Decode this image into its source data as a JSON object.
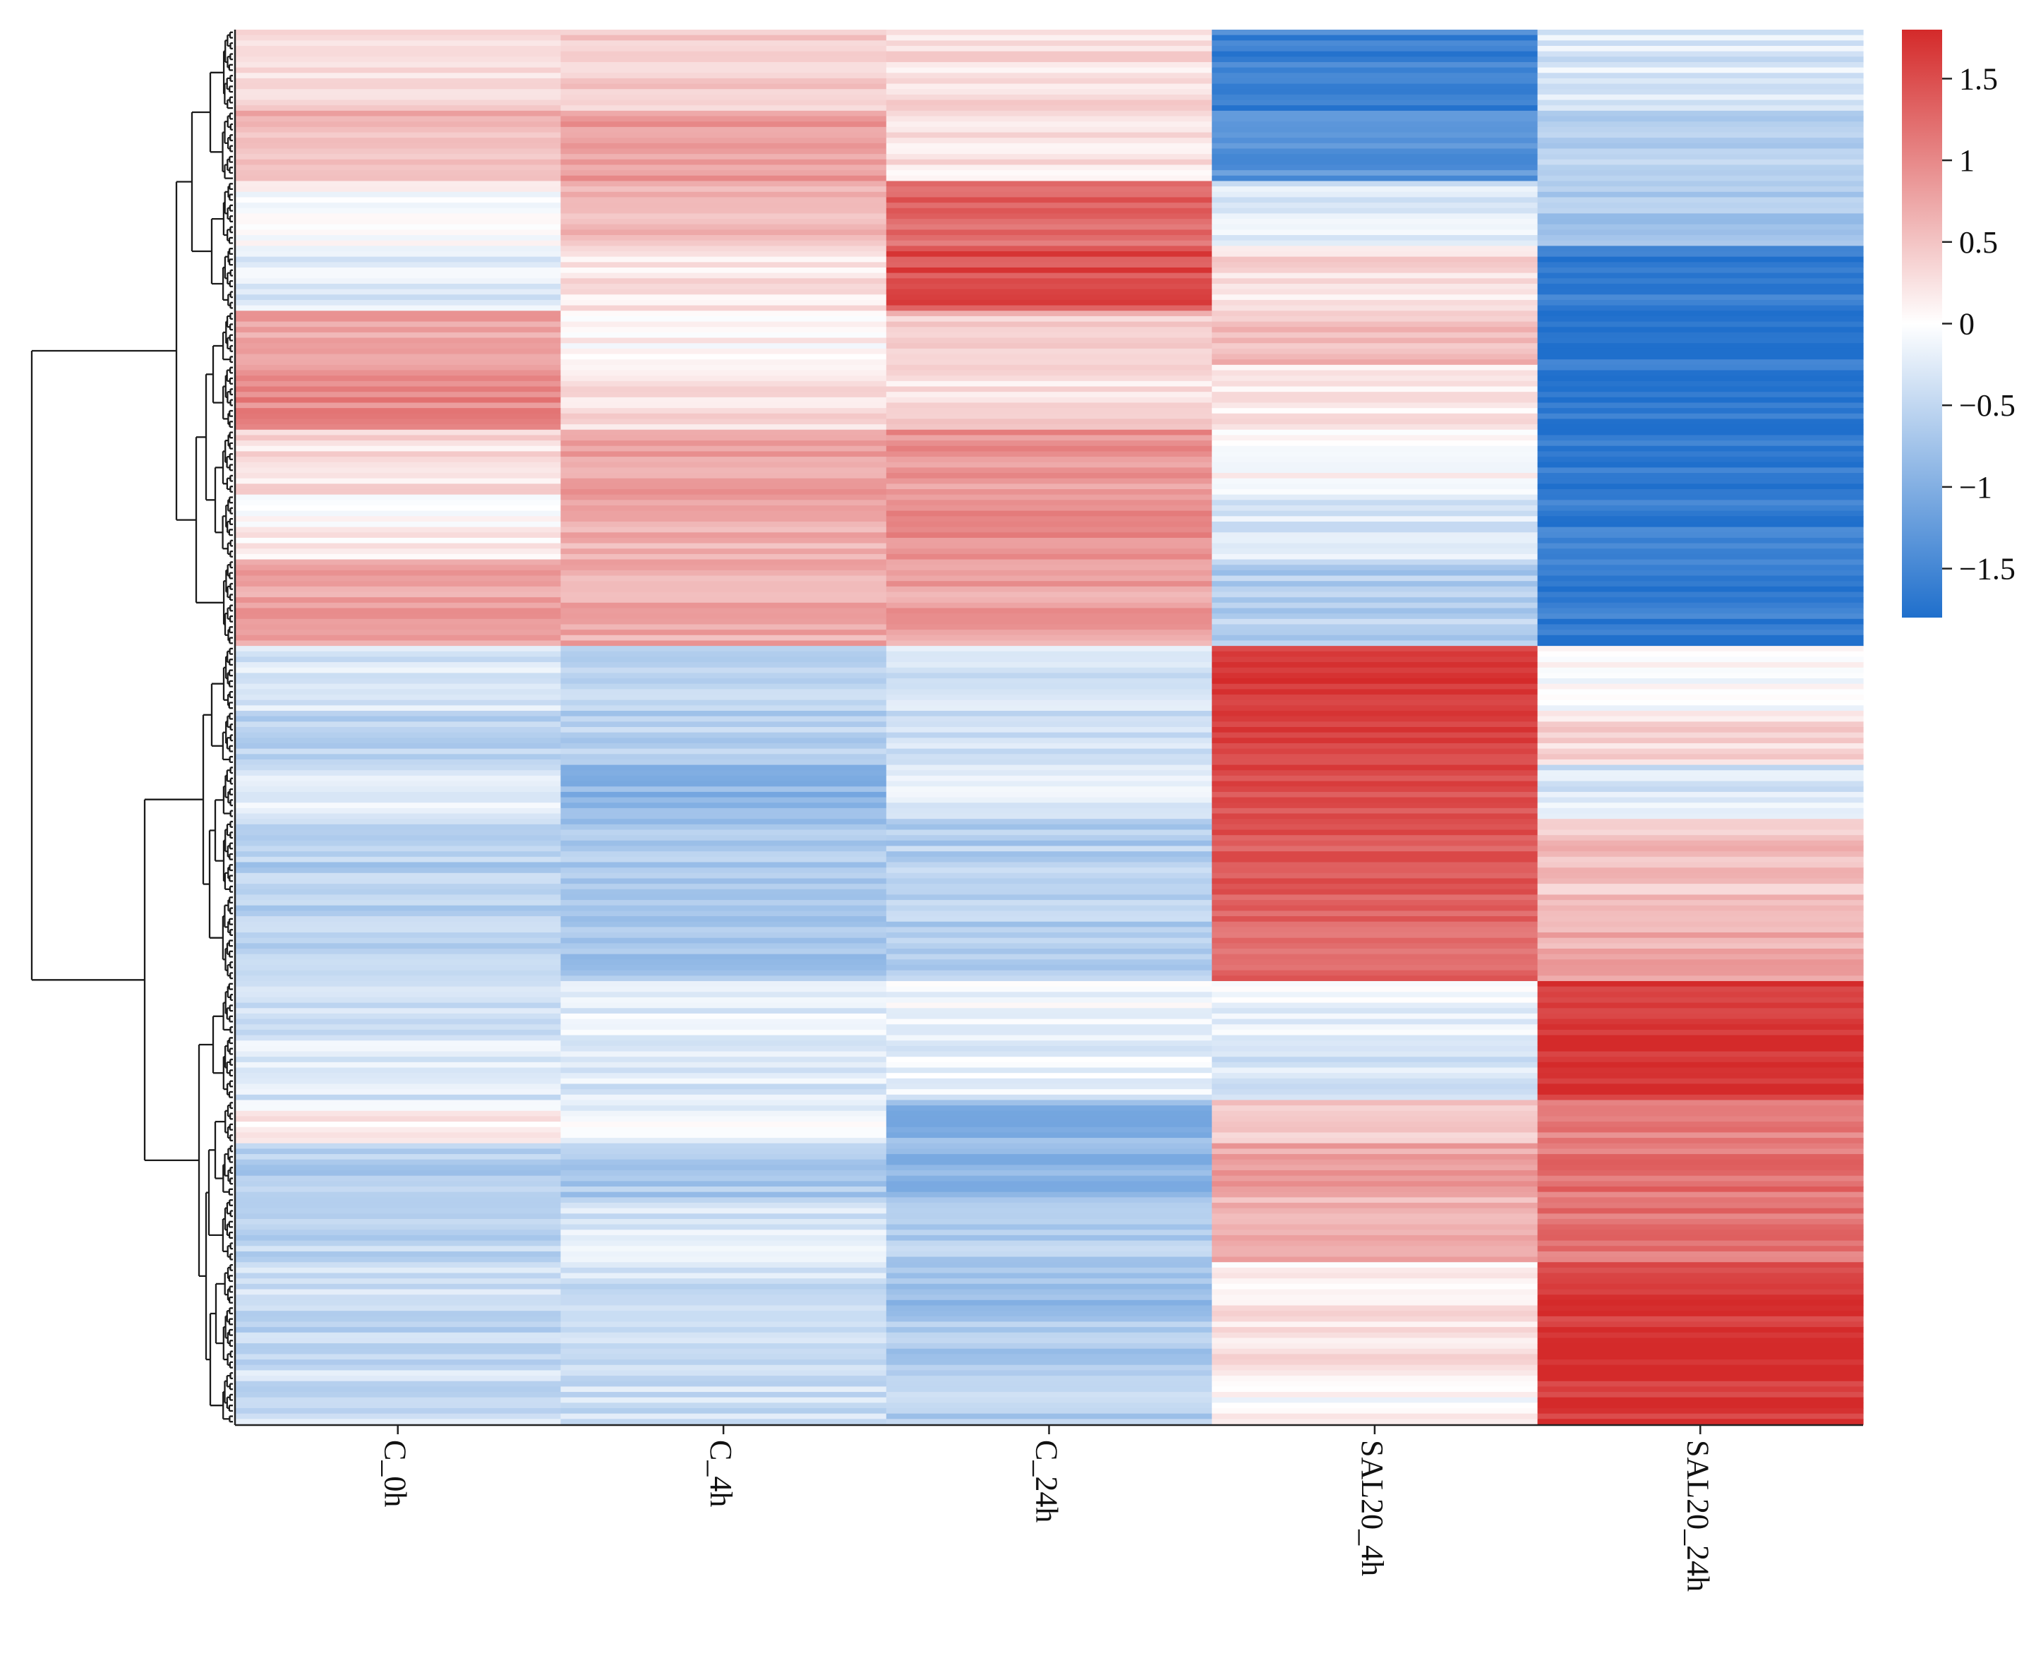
{
  "chart_data": {
    "type": "heatmap",
    "title": "",
    "xlabel": "",
    "ylabel": "",
    "columns": [
      "C_0h",
      "C_4h",
      "C_24h",
      "SAL20_4h",
      "SAL20_24h"
    ],
    "value_range": [
      -1.8,
      1.8
    ],
    "colorscale": {
      "low": "#1f6fcc",
      "mid": "#ffffff",
      "high": "#d42a2a"
    },
    "colorbar": {
      "ticks": [
        1.5,
        1,
        0.5,
        0,
        -0.5,
        -1,
        -1.5
      ],
      "tick_labels": [
        "1.5",
        "1",
        "0.5",
        "0",
        "−0.5",
        "−1",
        "−1.5"
      ]
    },
    "row_blocks": [
      {
        "rows": 15,
        "values": [
          0.3,
          0.4,
          0.3,
          -1.55,
          -0.3
        ]
      },
      {
        "rows": 13,
        "values": [
          0.6,
          0.8,
          0.25,
          -1.3,
          -0.6
        ]
      },
      {
        "rows": 12,
        "values": [
          0.0,
          0.6,
          1.3,
          -0.3,
          -0.7
        ]
      },
      {
        "rows": 12,
        "values": [
          -0.3,
          0.2,
          1.5,
          0.3,
          -1.6
        ]
      },
      {
        "rows": 10,
        "values": [
          0.8,
          0.1,
          0.5,
          0.6,
          -1.7
        ]
      },
      {
        "rows": 12,
        "values": [
          1.0,
          0.3,
          0.3,
          0.2,
          -1.7
        ]
      },
      {
        "rows": 12,
        "values": [
          0.3,
          0.8,
          0.9,
          0.0,
          -1.7
        ]
      },
      {
        "rows": 12,
        "values": [
          0.1,
          0.7,
          1.0,
          -0.3,
          -1.65
        ]
      },
      {
        "rows": 16,
        "values": [
          0.8,
          0.7,
          0.8,
          -0.6,
          -1.65
        ]
      },
      {
        "rows": 12,
        "values": [
          -0.3,
          -0.5,
          -0.3,
          1.7,
          0.0
        ]
      },
      {
        "rows": 10,
        "values": [
          -0.5,
          -0.6,
          -0.4,
          1.6,
          0.3
        ]
      },
      {
        "rows": 10,
        "values": [
          -0.3,
          -0.9,
          -0.2,
          1.5,
          -0.3
        ]
      },
      {
        "rows": 14,
        "values": [
          -0.6,
          -0.7,
          -0.6,
          1.4,
          0.5
        ]
      },
      {
        "rows": 16,
        "values": [
          -0.6,
          -0.7,
          -0.6,
          1.3,
          0.7
        ]
      },
      {
        "rows": 10,
        "values": [
          -0.4,
          -0.2,
          -0.1,
          -0.2,
          1.7
        ]
      },
      {
        "rows": 12,
        "values": [
          -0.3,
          -0.3,
          -0.2,
          -0.3,
          1.75
        ]
      },
      {
        "rows": 8,
        "values": [
          0.1,
          -0.1,
          -0.9,
          0.5,
          1.1
        ]
      },
      {
        "rows": 10,
        "values": [
          -0.6,
          -0.7,
          -0.9,
          0.8,
          1.2
        ]
      },
      {
        "rows": 12,
        "values": [
          -0.5,
          -0.3,
          -0.6,
          0.7,
          1.2
        ]
      },
      {
        "rows": 8,
        "values": [
          -0.4,
          -0.4,
          -0.8,
          0.2,
          1.6
        ]
      },
      {
        "rows": 12,
        "values": [
          -0.5,
          -0.4,
          -0.7,
          0.3,
          1.7
        ]
      },
      {
        "rows": 10,
        "values": [
          -0.4,
          -0.4,
          -0.6,
          0.05,
          1.7
        ]
      }
    ]
  }
}
